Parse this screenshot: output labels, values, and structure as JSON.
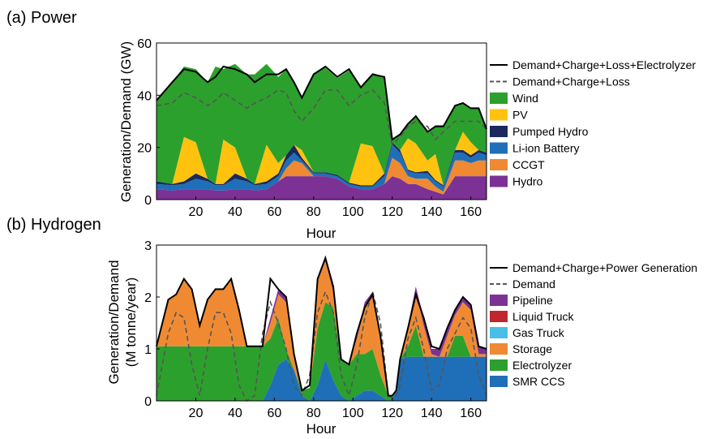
{
  "colors": {
    "wind": "#2ca02c",
    "pv": "#ffc20e",
    "pumped_hydro": "#1a2a5e",
    "liion": "#1f6fb8",
    "ccgt": "#ef8a33",
    "hydro": "#7b3294",
    "pipeline": "#7b3294",
    "liquid_truck": "#c0262d",
    "gas_truck": "#4bbde9",
    "storage": "#ef8a33",
    "electrolyzer": "#2ca02c",
    "smr_ccs": "#1f6fb8"
  },
  "chart_data": [
    {
      "panel_label": "(a) Power",
      "type": "area",
      "stacked": true,
      "xlabel": "Hour",
      "ylabel": "Generation/Demand (GW)",
      "xlim": [
        0,
        168
      ],
      "ylim": [
        0,
        60
      ],
      "xticks": [
        20,
        40,
        60,
        80,
        100,
        120,
        140,
        160
      ],
      "yticks": [
        0,
        20,
        40,
        60
      ],
      "x": [
        0,
        8,
        14,
        20,
        26,
        30,
        34,
        40,
        46,
        50,
        56,
        62,
        66,
        70,
        74,
        80,
        86,
        92,
        98,
        104,
        110,
        116,
        120,
        124,
        128,
        132,
        138,
        142,
        146,
        152,
        156,
        160,
        164,
        168
      ],
      "series": [
        {
          "name": "Hydro",
          "color_key": "hydro",
          "values": [
            4,
            3.5,
            4,
            4,
            4,
            3.5,
            3.5,
            4,
            4,
            3.5,
            4,
            7,
            9,
            9,
            9,
            9,
            9,
            8,
            5,
            4,
            4,
            6,
            9,
            8,
            6,
            6,
            4,
            3,
            2,
            9,
            9,
            9,
            9,
            9
          ]
        },
        {
          "name": "CCGT",
          "color_key": "ccgt",
          "values": [
            0,
            0,
            0,
            0,
            0,
            0,
            0,
            0,
            0,
            0,
            0,
            0,
            3,
            6,
            5,
            0,
            0,
            0,
            0,
            0,
            0,
            0,
            7,
            6,
            3,
            2,
            4,
            2,
            1,
            6,
            6,
            5,
            6,
            6
          ]
        },
        {
          "name": "Li-ion Battery",
          "color_key": "liion",
          "values": [
            2,
            2,
            2,
            4,
            3,
            2,
            2,
            4,
            3,
            2,
            2,
            2,
            3,
            3,
            1,
            1,
            1,
            1,
            1,
            1,
            1,
            3,
            5,
            4,
            2,
            2,
            2,
            2,
            2,
            3,
            3,
            2,
            3,
            2
          ]
        },
        {
          "name": "Pumped Hydro",
          "color_key": "pumped_hydro",
          "values": [
            1,
            0.5,
            1,
            2,
            1,
            0.5,
            0.5,
            2,
            1,
            0.5,
            1,
            1,
            2,
            3,
            1,
            0.5,
            0.5,
            0.5,
            0.5,
            0.5,
            0.5,
            1,
            1,
            1,
            0.5,
            0.5,
            1,
            0.5,
            0.5,
            1,
            1,
            1,
            1,
            1
          ]
        },
        {
          "name": "PV",
          "color_key": "pv",
          "values": [
            0,
            0,
            17,
            12,
            0,
            0,
            17,
            10,
            0,
            0,
            14,
            4,
            0,
            0,
            3,
            0,
            0,
            0,
            0,
            16,
            15,
            0,
            0,
            0,
            12,
            11,
            4,
            10,
            0,
            0,
            7,
            5,
            0,
            0
          ]
        },
        {
          "name": "Wind",
          "color_key": "wind",
          "values": [
            31,
            39,
            27,
            28,
            37,
            45,
            27,
            32,
            40,
            42,
            31,
            33,
            33,
            24,
            20,
            38,
            40,
            37,
            43,
            22,
            28,
            37,
            1,
            6,
            5,
            11,
            11,
            11,
            23,
            17,
            11,
            13,
            16,
            9
          ]
        },
        {
          "name": "Demand+Charge+Loss",
          "type": "line",
          "style": "dashed",
          "values": [
            36,
            37,
            41,
            39,
            36,
            38,
            41,
            38,
            35,
            37,
            39,
            42,
            41,
            34,
            30,
            35,
            42,
            42,
            36,
            40,
            42,
            37,
            21,
            24,
            28,
            30,
            28,
            23,
            26,
            30,
            30,
            30,
            30,
            27
          ]
        },
        {
          "name": "Demand+Charge+Loss+Electrolyzer",
          "type": "line",
          "style": "solid",
          "values": [
            38,
            45,
            50,
            49,
            45,
            47,
            51,
            50,
            48,
            45,
            48,
            48,
            50,
            45,
            39,
            48,
            51,
            47,
            50,
            43,
            48,
            47,
            23,
            25,
            29,
            32,
            26,
            28,
            28,
            36,
            37,
            35,
            35,
            27
          ]
        }
      ],
      "legend": [
        "Demand+Charge+Loss+Electrolyzer",
        "Demand+Charge+Loss",
        "Wind",
        "PV",
        "Pumped Hydro",
        "Li-ion Battery",
        "CCGT",
        "Hydro"
      ],
      "legend_placement": "right outside"
    },
    {
      "panel_label": "(b) Hydrogen",
      "type": "area",
      "stacked": true,
      "xlabel": "Hour",
      "ylabel": "Generation/Demand",
      "ylabel2": "(M tonne/year)",
      "xlim": [
        0,
        168
      ],
      "ylim": [
        0,
        3
      ],
      "xticks": [
        20,
        40,
        60,
        80,
        100,
        120,
        140,
        160
      ],
      "yticks": [
        0,
        1,
        2,
        3
      ],
      "x": [
        0,
        6,
        10,
        14,
        18,
        22,
        26,
        30,
        34,
        38,
        42,
        46,
        50,
        54,
        58,
        62,
        66,
        70,
        74,
        78,
        82,
        86,
        90,
        94,
        98,
        102,
        106,
        110,
        114,
        118,
        120,
        122,
        124,
        128,
        132,
        136,
        140,
        144,
        148,
        152,
        156,
        160,
        164,
        168
      ],
      "series": [
        {
          "name": "SMR CCS",
          "color_key": "smr_ccs",
          "values": [
            0,
            0,
            0,
            0,
            0,
            0,
            0,
            0,
            0,
            0,
            0,
            0,
            0,
            0,
            0.3,
            0.7,
            0.8,
            0.6,
            0.1,
            0,
            0.3,
            0.8,
            0.4,
            0.1,
            0,
            0.1,
            0.2,
            0.2,
            0.1,
            0,
            0.05,
            0.2,
            0.8,
            0.85,
            0.85,
            0.85,
            0.85,
            0.85,
            0.85,
            0.85,
            0.85,
            0.85,
            0.85,
            0.85
          ]
        },
        {
          "name": "Electrolyzer",
          "color_key": "electrolyzer",
          "values": [
            1.05,
            1.05,
            1.05,
            1.05,
            1.05,
            1.05,
            1.05,
            1.05,
            1.05,
            1.05,
            1.05,
            1.05,
            1.05,
            1.05,
            0.9,
            0.9,
            0.2,
            0,
            0.1,
            0.25,
            1.1,
            1.1,
            1.4,
            0.7,
            0.7,
            0.8,
            0.7,
            0.8,
            0.4,
            0.1,
            0.05,
            0,
            0,
            0.2,
            0.6,
            0,
            0,
            0,
            0,
            0.4,
            0.4,
            0,
            0,
            0
          ]
        },
        {
          "name": "Storage",
          "color_key": "storage",
          "values": [
            0,
            0.9,
            1.0,
            1.3,
            1.1,
            0.4,
            0.9,
            1.1,
            1.1,
            1.3,
            0.7,
            0,
            0,
            0,
            0.3,
            0.45,
            0.9,
            0.3,
            0,
            0,
            0.9,
            0.8,
            0.3,
            0,
            0,
            0.3,
            0.9,
            1.0,
            0.7,
            0,
            0,
            0,
            0,
            0.35,
            0.65,
            0.6,
            0.05,
            0,
            0.4,
            0.4,
            0.65,
            0.9,
            0.05,
            0.05
          ]
        },
        {
          "name": "Gas Truck",
          "color_key": "gas_truck",
          "values": [
            0,
            0,
            0,
            0,
            0,
            0,
            0,
            0,
            0,
            0,
            0,
            0,
            0,
            0,
            0,
            0,
            0,
            0,
            0,
            0,
            0,
            0,
            0,
            0,
            0,
            0,
            0,
            0,
            0,
            0,
            0,
            0,
            0,
            0,
            0,
            0,
            0,
            0,
            0,
            0,
            0,
            0,
            0,
            0
          ]
        },
        {
          "name": "Liquid Truck",
          "color_key": "liquid_truck",
          "values": [
            0,
            0,
            0,
            0,
            0,
            0,
            0,
            0,
            0,
            0,
            0,
            0,
            0,
            0,
            0,
            0,
            0,
            0,
            0,
            0,
            0,
            0,
            0,
            0,
            0,
            0,
            0,
            0,
            0,
            0,
            0,
            0,
            0,
            0,
            0,
            0,
            0,
            0,
            0,
            0,
            0,
            0,
            0,
            0
          ]
        },
        {
          "name": "Pipeline",
          "color_key": "pipeline",
          "values": [
            0,
            0,
            0,
            0,
            0,
            0,
            0,
            0,
            0,
            0,
            0,
            0,
            0,
            0,
            0.1,
            0.1,
            0.1,
            0,
            0,
            0,
            0.05,
            0.1,
            0.05,
            0,
            0,
            0.05,
            0.1,
            0.1,
            0.05,
            0,
            0,
            0,
            0,
            0.05,
            0.1,
            0.15,
            0.1,
            0.15,
            0.15,
            0.1,
            0.1,
            0.1,
            0.15,
            0.1
          ]
        },
        {
          "name": "Demand",
          "type": "line",
          "style": "dashed",
          "values": [
            0.1,
            1.3,
            1.7,
            1.6,
            0.7,
            0.1,
            1.0,
            1.7,
            1.7,
            1.3,
            0.3,
            0,
            0.1,
            1.3,
            1.9,
            1.5,
            1.0,
            0.3,
            0.1,
            0.5,
            1.7,
            2.1,
            1.7,
            0.5,
            0.1,
            0.7,
            1.6,
            2.1,
            1.5,
            0.1,
            0.05,
            0.1,
            0.3,
            1.2,
            1.6,
            1.0,
            0.2,
            0.3,
            1.0,
            1.3,
            1.6,
            1.4,
            0.5,
            0.1
          ]
        },
        {
          "name": "Demand+Charge+Power Generation",
          "type": "line",
          "style": "solid",
          "values": [
            1.05,
            1.95,
            2.05,
            2.35,
            2.15,
            1.45,
            1.95,
            2.15,
            2.15,
            2.35,
            1.75,
            1.05,
            1.05,
            1.05,
            2.35,
            2.15,
            2.0,
            0.9,
            0.2,
            0.3,
            2.35,
            2.75,
            2.2,
            0.8,
            0.7,
            1.3,
            1.8,
            2.05,
            1.25,
            0.1,
            0.1,
            0.2,
            0.8,
            1.4,
            2.05,
            1.6,
            1.05,
            1.0,
            1.4,
            1.75,
            2.0,
            1.85,
            1.05,
            1.0
          ]
        }
      ],
      "legend": [
        "Demand+Charge+Power Generation",
        "Demand",
        "Pipeline",
        "Liquid Truck",
        "Gas Truck",
        "Storage",
        "Electrolyzer",
        "SMR CCS"
      ],
      "legend_placement": "right outside"
    }
  ]
}
